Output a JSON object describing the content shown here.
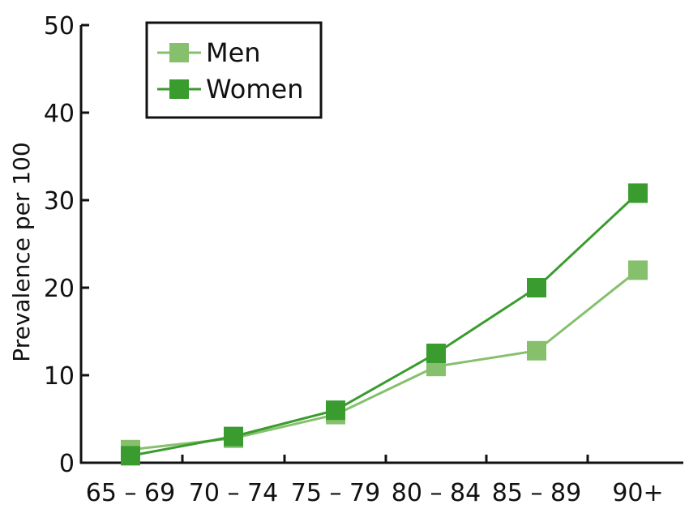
{
  "chart_data": {
    "type": "line",
    "categories": [
      "65 – 69",
      "70 – 74",
      "75 – 79",
      "80 – 84",
      "85 – 89",
      "90+"
    ],
    "series": [
      {
        "name": "Men",
        "values": [
          1.5,
          2.8,
          5.5,
          11.0,
          12.8,
          22.0
        ],
        "color": "#86c06d"
      },
      {
        "name": "Women",
        "values": [
          0.8,
          3.0,
          6.0,
          12.5,
          20.0,
          30.8
        ],
        "color": "#3a9b2e"
      }
    ],
    "ylabel": "Prevalence per 100",
    "xlabel": "",
    "ylim": [
      0,
      50
    ],
    "yticks": [
      0,
      10,
      20,
      30,
      40,
      50
    ],
    "grid": false,
    "legend_position": "top-left"
  }
}
